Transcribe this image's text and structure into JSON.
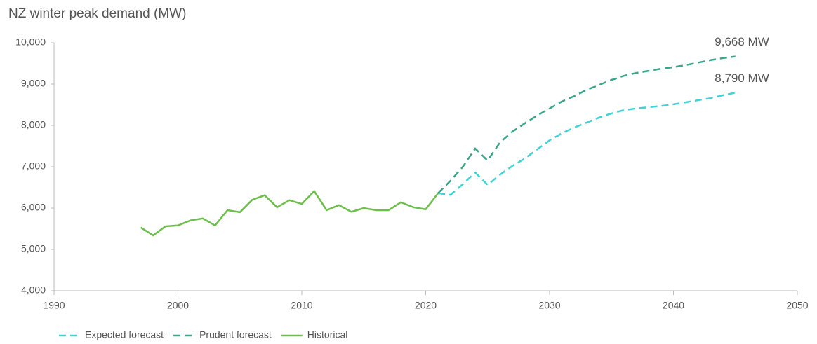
{
  "chart_data": {
    "type": "line",
    "title": "NZ winter peak demand (MW)",
    "x": [
      1997,
      1998,
      1999,
      2000,
      2001,
      2002,
      2003,
      2004,
      2005,
      2006,
      2007,
      2008,
      2009,
      2010,
      2011,
      2012,
      2013,
      2014,
      2015,
      2016,
      2017,
      2018,
      2019,
      2020,
      2021,
      2022,
      2023,
      2024,
      2025,
      2026,
      2027,
      2028,
      2029,
      2030,
      2031,
      2032,
      2033,
      2034,
      2035,
      2036,
      2037,
      2038,
      2039,
      2040,
      2041,
      2042,
      2043,
      2044,
      2045
    ],
    "series": [
      {
        "name": "Expected forecast",
        "color": "#3fd3d6",
        "style": "dashed",
        "values": [
          null,
          null,
          null,
          null,
          null,
          null,
          null,
          null,
          null,
          null,
          null,
          null,
          null,
          null,
          null,
          null,
          null,
          null,
          null,
          null,
          null,
          null,
          null,
          null,
          6360,
          6320,
          6580,
          6860,
          6560,
          6810,
          7020,
          7200,
          7420,
          7640,
          7810,
          7950,
          8070,
          8190,
          8290,
          8370,
          8410,
          8440,
          8470,
          8510,
          8560,
          8610,
          8660,
          8730,
          8790
        ]
      },
      {
        "name": "Prudent forecast",
        "color": "#3aa58a",
        "style": "dashed",
        "values": [
          null,
          null,
          null,
          null,
          null,
          null,
          null,
          null,
          null,
          null,
          null,
          null,
          null,
          null,
          null,
          null,
          null,
          null,
          null,
          null,
          null,
          null,
          null,
          null,
          6360,
          6660,
          7000,
          7440,
          7150,
          7590,
          7850,
          8050,
          8240,
          8410,
          8580,
          8710,
          8860,
          8980,
          9100,
          9200,
          9270,
          9320,
          9370,
          9410,
          9460,
          9520,
          9580,
          9630,
          9668
        ]
      },
      {
        "name": "Historical",
        "color": "#6cbf4a",
        "style": "solid",
        "values": [
          5530,
          5340,
          5560,
          5580,
          5700,
          5750,
          5580,
          5950,
          5900,
          6200,
          6310,
          6020,
          6190,
          6100,
          6410,
          5950,
          6070,
          5910,
          6000,
          5950,
          5950,
          6140,
          6020,
          5970,
          6360,
          null,
          null,
          null,
          null,
          null,
          null,
          null,
          null,
          null,
          null,
          null,
          null,
          null,
          null,
          null,
          null,
          null,
          null,
          null,
          null,
          null,
          null,
          null,
          null
        ]
      }
    ],
    "annotations": [
      {
        "text": "9,668 MW",
        "x": 2045,
        "y": 9668
      },
      {
        "text": "8,790 MW",
        "x": 2045,
        "y": 8790
      }
    ],
    "xlim": [
      1990,
      2050
    ],
    "xticks": [
      1990,
      2000,
      2010,
      2020,
      2030,
      2040,
      2050
    ],
    "ylim": [
      4000,
      10000
    ],
    "yticks": [
      {
        "value": 4000,
        "label": "4,000"
      },
      {
        "value": 5000,
        "label": "5,000"
      },
      {
        "value": 6000,
        "label": "6,000"
      },
      {
        "value": 7000,
        "label": "7,000"
      },
      {
        "value": 8000,
        "label": "8,000"
      },
      {
        "value": 9000,
        "label": "9,000"
      },
      {
        "value": 10000,
        "label": "10,000"
      }
    ],
    "grid": false,
    "legend": "bottom-left"
  }
}
